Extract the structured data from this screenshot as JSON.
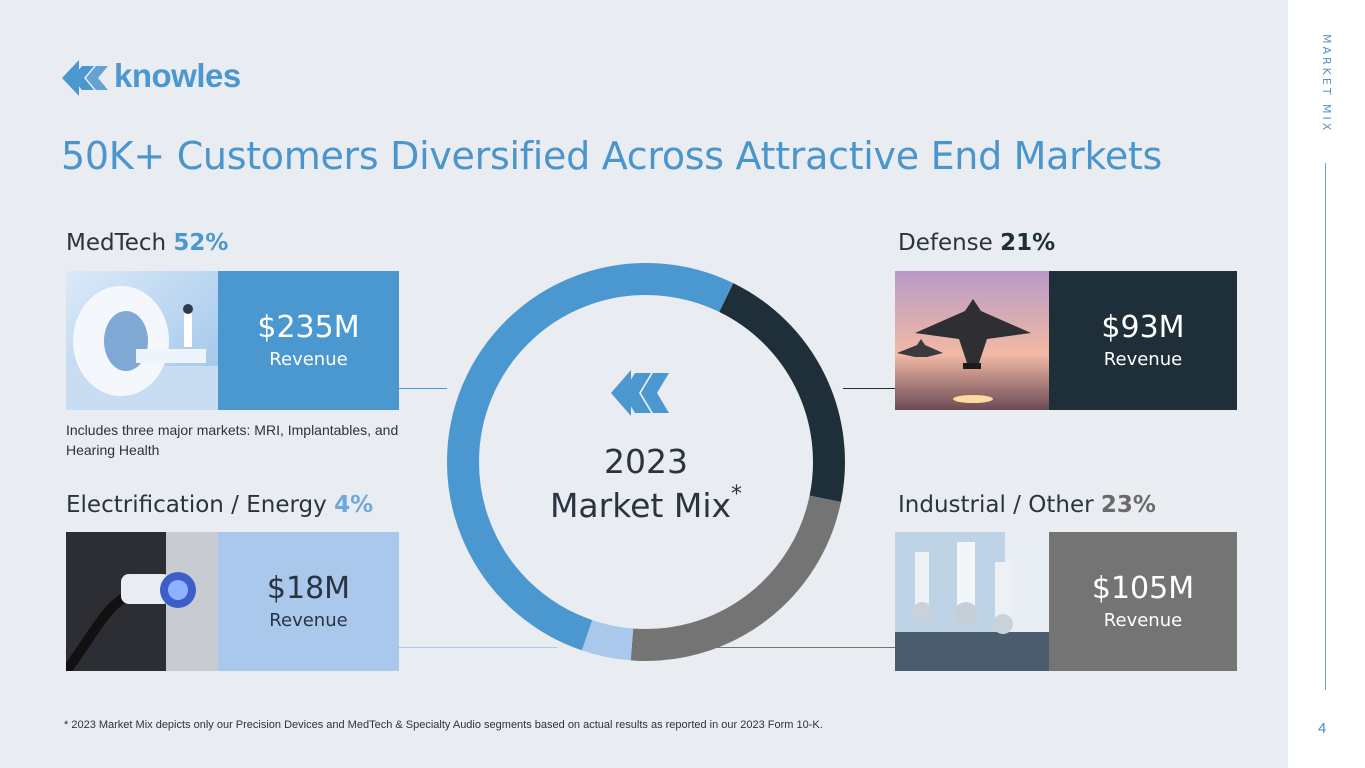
{
  "brand": {
    "name": "knowles"
  },
  "side_label": "MARKET MIX",
  "page_number": "4",
  "title": "50K+ Customers Diversified Across Attractive End Markets",
  "center": {
    "year": "2023",
    "label": "Market Mix",
    "asterisk": "*"
  },
  "segments": [
    {
      "name": "MedTech",
      "pct": "52%",
      "amount": "$235M",
      "revenue_label": "Revenue",
      "color": "#4a98cf"
    },
    {
      "name": "Defense",
      "pct": "21%",
      "amount": "$93M",
      "revenue_label": "Revenue",
      "color": "#1e2f3a"
    },
    {
      "name": "Industrial / Other",
      "pct": "23%",
      "amount": "$105M",
      "revenue_label": "Revenue",
      "color": "#747474"
    },
    {
      "name": "Electrification / Energy",
      "pct": "4%",
      "amount": "$18M",
      "revenue_label": "Revenue",
      "color": "#a9c8eb"
    }
  ],
  "note": "Includes three major markets: MRI, Implantables, and Hearing Health",
  "footnote": "* 2023 Market Mix depicts only our Precision Devices and MedTech & Specialty Audio segments based on actual results as reported in our 2023 Form 10-K.",
  "chart_data": {
    "type": "pie",
    "categories": [
      "MedTech",
      "Defense",
      "Industrial / Other",
      "Electrification / Energy"
    ],
    "values": [
      52,
      21,
      23,
      4
    ],
    "colors": [
      "#4a98cf",
      "#1e2f3a",
      "#747474",
      "#a9c8eb"
    ]
  },
  "icons": [
    "knowles-logo-icon",
    "knowles-mark-icon"
  ]
}
